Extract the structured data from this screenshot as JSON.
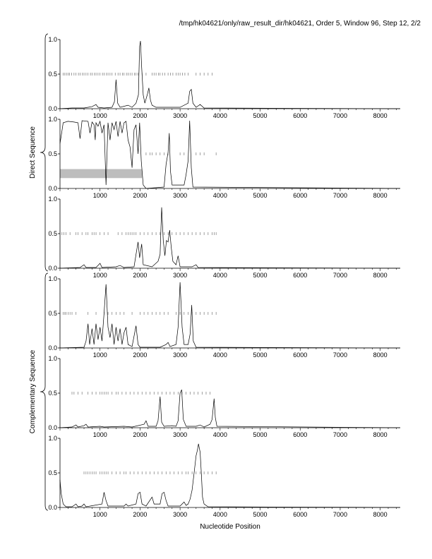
{
  "header": {
    "title": "/tmp/hk04621/only/raw_result_dir/hk04621, Order 5, Window 96, Step 12, 2/2"
  },
  "chart_data": {
    "type": "line",
    "title": "/tmp/hk04621/only/raw_result_dir/hk04621, Order 5, Window 96, Step 12, 2/2",
    "xlabel": "Nucleotide Position",
    "ylabel": "",
    "xlim": [
      0,
      8500
    ],
    "ylim": [
      0,
      1
    ],
    "x_ticks": [
      "1000",
      "2000",
      "3000",
      "4000",
      "5000",
      "6000",
      "7000",
      "8000"
    ],
    "y_ticks": [
      "0.0",
      "0.5",
      "1.0"
    ],
    "grid": false,
    "groups": [
      {
        "label": "Direct Sequence",
        "panels": [
          0,
          1,
          2
        ]
      },
      {
        "label": "Complementary Sequence",
        "panels": [
          3,
          4,
          5
        ]
      }
    ],
    "panels": [
      {
        "series": [
          [
            0,
            0
          ],
          [
            300,
            0.01
          ],
          [
            600,
            0.01
          ],
          [
            800,
            0.03
          ],
          [
            900,
            0.06
          ],
          [
            950,
            0.02
          ],
          [
            1100,
            0.01
          ],
          [
            1300,
            0.02
          ],
          [
            1360,
            0.1
          ],
          [
            1400,
            0.42
          ],
          [
            1440,
            0.08
          ],
          [
            1500,
            0.02
          ],
          [
            1700,
            0.05
          ],
          [
            1800,
            0.02
          ],
          [
            1900,
            0.08
          ],
          [
            1960,
            0.2
          ],
          [
            1990,
            0.9
          ],
          [
            2010,
            0.98
          ],
          [
            2040,
            0.6
          ],
          [
            2080,
            0.2
          ],
          [
            2120,
            0.08
          ],
          [
            2180,
            0.2
          ],
          [
            2220,
            0.3
          ],
          [
            2260,
            0.12
          ],
          [
            2300,
            0.05
          ],
          [
            2400,
            0.02
          ],
          [
            2800,
            0.02
          ],
          [
            3000,
            0.02
          ],
          [
            3200,
            0.08
          ],
          [
            3240,
            0.25
          ],
          [
            3280,
            0.28
          ],
          [
            3320,
            0.08
          ],
          [
            3400,
            0.02
          ],
          [
            3500,
            0.06
          ],
          [
            3600,
            0.01
          ],
          [
            8500,
            0
          ]
        ],
        "ticks": [
          80,
          120,
          160,
          200,
          240,
          290,
          350,
          400,
          460,
          500,
          560,
          600,
          650,
          700,
          760,
          800,
          860,
          900,
          950,
          1000,
          1060,
          1100,
          1160,
          1200,
          1250,
          1300,
          1380,
          1450,
          1500,
          1560,
          1600,
          1660,
          1700,
          1750,
          1800,
          1860,
          1900,
          1950,
          2050,
          2150,
          2300,
          2350,
          2400,
          2460,
          2500,
          2560,
          2620,
          2700,
          2760,
          2820,
          2900,
          2950,
          3000,
          3060,
          3120,
          3200,
          3400,
          3500,
          3600,
          3700,
          3800
        ],
        "ticks_level": 0.5,
        "highlight": null
      },
      {
        "series": [
          [
            0,
            0.65
          ],
          [
            40,
            0.8
          ],
          [
            80,
            0.95
          ],
          [
            200,
            0.97
          ],
          [
            350,
            0.96
          ],
          [
            450,
            0.95
          ],
          [
            500,
            0.72
          ],
          [
            550,
            0.98
          ],
          [
            700,
            0.97
          ],
          [
            750,
            0.8
          ],
          [
            800,
            0.96
          ],
          [
            850,
            0.92
          ],
          [
            880,
            0.7
          ],
          [
            900,
            0.95
          ],
          [
            950,
            0.9
          ],
          [
            1000,
            0.97
          ],
          [
            1050,
            0.8
          ],
          [
            1100,
            0.92
          ],
          [
            1150,
            0.05
          ],
          [
            1200,
            0.95
          ],
          [
            1250,
            0.7
          ],
          [
            1300,
            0.95
          ],
          [
            1350,
            0.85
          ],
          [
            1400,
            0.97
          ],
          [
            1450,
            0.75
          ],
          [
            1500,
            0.97
          ],
          [
            1550,
            0.8
          ],
          [
            1600,
            0.95
          ],
          [
            1650,
            0.97
          ],
          [
            1700,
            0.7
          ],
          [
            1750,
            0.6
          ],
          [
            1800,
            0.3
          ],
          [
            1850,
            0.85
          ],
          [
            1900,
            0.92
          ],
          [
            1950,
            0.5
          ],
          [
            1990,
            0.95
          ],
          [
            2030,
            0.4
          ],
          [
            2080,
            0.05
          ],
          [
            2150,
            0
          ],
          [
            2600,
            0.02
          ],
          [
            2650,
            0.35
          ],
          [
            2700,
            0.52
          ],
          [
            2730,
            0.8
          ],
          [
            2760,
            0.25
          ],
          [
            2800,
            0.05
          ],
          [
            3100,
            0.05
          ],
          [
            3150,
            0.2
          ],
          [
            3200,
            0.4
          ],
          [
            3240,
            0.98
          ],
          [
            3280,
            0.3
          ],
          [
            3320,
            0.02
          ],
          [
            8500,
            0
          ]
        ],
        "ticks": [
          2150,
          2250,
          2300,
          2400,
          2500,
          2600,
          2700,
          3000,
          3100,
          3400,
          3500,
          3600,
          3900
        ],
        "ticks_level": 0.5,
        "highlight": {
          "x0": 0,
          "x1": 2050,
          "y0": 0.15,
          "y1": 0.28
        }
      },
      {
        "series": [
          [
            0,
            0
          ],
          [
            500,
            0.01
          ],
          [
            600,
            0.05
          ],
          [
            650,
            0.01
          ],
          [
            900,
            0.01
          ],
          [
            1000,
            0.07
          ],
          [
            1050,
            0.01
          ],
          [
            1400,
            0.02
          ],
          [
            1500,
            0.04
          ],
          [
            1600,
            0.01
          ],
          [
            1850,
            0.02
          ],
          [
            1900,
            0.2
          ],
          [
            1950,
            0.38
          ],
          [
            1990,
            0.15
          ],
          [
            2040,
            0.35
          ],
          [
            2080,
            0.05
          ],
          [
            2300,
            0.02
          ],
          [
            2450,
            0.1
          ],
          [
            2500,
            0.2
          ],
          [
            2540,
            0.88
          ],
          [
            2580,
            0.4
          ],
          [
            2620,
            0.18
          ],
          [
            2660,
            0.4
          ],
          [
            2700,
            0.38
          ],
          [
            2740,
            0.55
          ],
          [
            2780,
            0.3
          ],
          [
            2820,
            0.1
          ],
          [
            2900,
            0.05
          ],
          [
            2950,
            0.18
          ],
          [
            3000,
            0.02
          ],
          [
            3300,
            0.02
          ],
          [
            3400,
            0.05
          ],
          [
            3450,
            0.01
          ],
          [
            8500,
            0
          ]
        ],
        "ticks": [
          50,
          100,
          150,
          250,
          400,
          450,
          550,
          650,
          700,
          800,
          850,
          900,
          1000,
          1100,
          1200,
          1450,
          1550,
          1650,
          1700,
          1750,
          1800,
          1850,
          1900,
          2000,
          2100,
          2200,
          2300,
          2400,
          2500,
          2600,
          2700,
          2800,
          2900,
          3000,
          3100,
          3200,
          3300,
          3400,
          3500,
          3600,
          3700,
          3800,
          3850,
          3900
        ],
        "ticks_level": 0.5,
        "highlight": null
      },
      {
        "series": [
          [
            0,
            0
          ],
          [
            600,
            0.01
          ],
          [
            650,
            0.1
          ],
          [
            700,
            0.35
          ],
          [
            740,
            0.05
          ],
          [
            800,
            0.28
          ],
          [
            850,
            0.05
          ],
          [
            900,
            0.35
          ],
          [
            950,
            0.12
          ],
          [
            1000,
            0.3
          ],
          [
            1050,
            0.1
          ],
          [
            1100,
            0.5
          ],
          [
            1150,
            0.92
          ],
          [
            1200,
            0.3
          ],
          [
            1250,
            0.15
          ],
          [
            1300,
            0.35
          ],
          [
            1350,
            0.05
          ],
          [
            1400,
            0.3
          ],
          [
            1450,
            0.1
          ],
          [
            1500,
            0.28
          ],
          [
            1550,
            0.05
          ],
          [
            1600,
            0.22
          ],
          [
            1650,
            0.3
          ],
          [
            1700,
            0.05
          ],
          [
            1800,
            0.02
          ],
          [
            1900,
            0.32
          ],
          [
            1950,
            0.05
          ],
          [
            2000,
            0.01
          ],
          [
            2500,
            0.01
          ],
          [
            2650,
            0.05
          ],
          [
            2700,
            0.08
          ],
          [
            2750,
            0.02
          ],
          [
            2900,
            0.05
          ],
          [
            2950,
            0.3
          ],
          [
            3000,
            0.95
          ],
          [
            3050,
            0.3
          ],
          [
            3100,
            0.05
          ],
          [
            3200,
            0.05
          ],
          [
            3250,
            0.2
          ],
          [
            3290,
            0.62
          ],
          [
            3330,
            0.1
          ],
          [
            3400,
            0.01
          ],
          [
            8500,
            0
          ]
        ],
        "ticks": [
          80,
          120,
          150,
          200,
          250,
          300,
          400,
          700,
          900,
          1100,
          1200,
          1300,
          1400,
          1500,
          1600,
          1800,
          2000,
          2100,
          2200,
          2300,
          2400,
          2500,
          2600,
          2700,
          2900,
          3000,
          3100,
          3200,
          3300,
          3400,
          3500,
          3600,
          3700,
          3800,
          3900
        ],
        "ticks_level": 0.5,
        "highlight": null
      },
      {
        "series": [
          [
            0,
            0
          ],
          [
            300,
            0.01
          ],
          [
            400,
            0.04
          ],
          [
            450,
            0.01
          ],
          [
            600,
            0.03
          ],
          [
            650,
            0.05
          ],
          [
            700,
            0.01
          ],
          [
            1000,
            0.02
          ],
          [
            1100,
            0.01
          ],
          [
            1600,
            0.02
          ],
          [
            1800,
            0.01
          ],
          [
            2100,
            0.05
          ],
          [
            2150,
            0.1
          ],
          [
            2200,
            0.02
          ],
          [
            2400,
            0.02
          ],
          [
            2450,
            0.1
          ],
          [
            2500,
            0.45
          ],
          [
            2540,
            0.08
          ],
          [
            2600,
            0.02
          ],
          [
            2800,
            0.03
          ],
          [
            2900,
            0.02
          ],
          [
            2950,
            0.1
          ],
          [
            3000,
            0.5
          ],
          [
            3040,
            0.55
          ],
          [
            3080,
            0.12
          ],
          [
            3150,
            0.02
          ],
          [
            3400,
            0.02
          ],
          [
            3500,
            0.04
          ],
          [
            3600,
            0.01
          ],
          [
            3750,
            0.05
          ],
          [
            3800,
            0.12
          ],
          [
            3850,
            0.42
          ],
          [
            3880,
            0.15
          ],
          [
            3920,
            0.02
          ],
          [
            8500,
            0
          ]
        ],
        "ticks": [
          300,
          350,
          450,
          550,
          700,
          800,
          900,
          1000,
          1050,
          1100,
          1150,
          1200,
          1300,
          1400,
          1450,
          1550,
          1650,
          1750,
          1850,
          1950,
          2050,
          2150,
          2250,
          2350,
          2450,
          2550,
          2650,
          2750,
          2850,
          2950,
          3050,
          3150,
          3250,
          3350,
          3450,
          3550,
          3650,
          3750
        ],
        "ticks_level": 0.5,
        "highlight": null
      },
      {
        "series": [
          [
            0,
            0.4
          ],
          [
            30,
            0.2
          ],
          [
            80,
            0.05
          ],
          [
            150,
            0.01
          ],
          [
            300,
            0.01
          ],
          [
            400,
            0.05
          ],
          [
            450,
            0.01
          ],
          [
            550,
            0.02
          ],
          [
            600,
            0.05
          ],
          [
            650,
            0.01
          ],
          [
            1050,
            0.05
          ],
          [
            1100,
            0.22
          ],
          [
            1150,
            0.1
          ],
          [
            1200,
            0.02
          ],
          [
            1600,
            0.02
          ],
          [
            1650,
            0.05
          ],
          [
            1700,
            0.02
          ],
          [
            1900,
            0.05
          ],
          [
            1950,
            0.2
          ],
          [
            2000,
            0.22
          ],
          [
            2050,
            0.05
          ],
          [
            2150,
            0.02
          ],
          [
            2300,
            0.15
          ],
          [
            2350,
            0.05
          ],
          [
            2500,
            0.05
          ],
          [
            2550,
            0.2
          ],
          [
            2600,
            0.22
          ],
          [
            2650,
            0.1
          ],
          [
            2700,
            0.02
          ],
          [
            3000,
            0.02
          ],
          [
            3100,
            0.08
          ],
          [
            3150,
            0.03
          ],
          [
            3200,
            0.05
          ],
          [
            3250,
            0.12
          ],
          [
            3300,
            0.25
          ],
          [
            3350,
            0.5
          ],
          [
            3400,
            0.75
          ],
          [
            3430,
            0.82
          ],
          [
            3460,
            0.92
          ],
          [
            3500,
            0.8
          ],
          [
            3530,
            0.5
          ],
          [
            3560,
            0.15
          ],
          [
            3600,
            0.05
          ],
          [
            3700,
            0.01
          ],
          [
            8500,
            0
          ]
        ],
        "ticks": [
          600,
          650,
          700,
          750,
          800,
          850,
          900,
          1000,
          1050,
          1100,
          1150,
          1200,
          1300,
          1400,
          1500,
          1600,
          1650,
          1750,
          1850,
          1950,
          2050,
          2150,
          2250,
          2350,
          2450,
          2550,
          2650,
          2750,
          2850,
          2950,
          3050,
          3150,
          3200,
          3300,
          3400,
          3500,
          3600,
          3700,
          3800,
          3900
        ],
        "ticks_level": 0.5,
        "highlight": null
      }
    ]
  }
}
